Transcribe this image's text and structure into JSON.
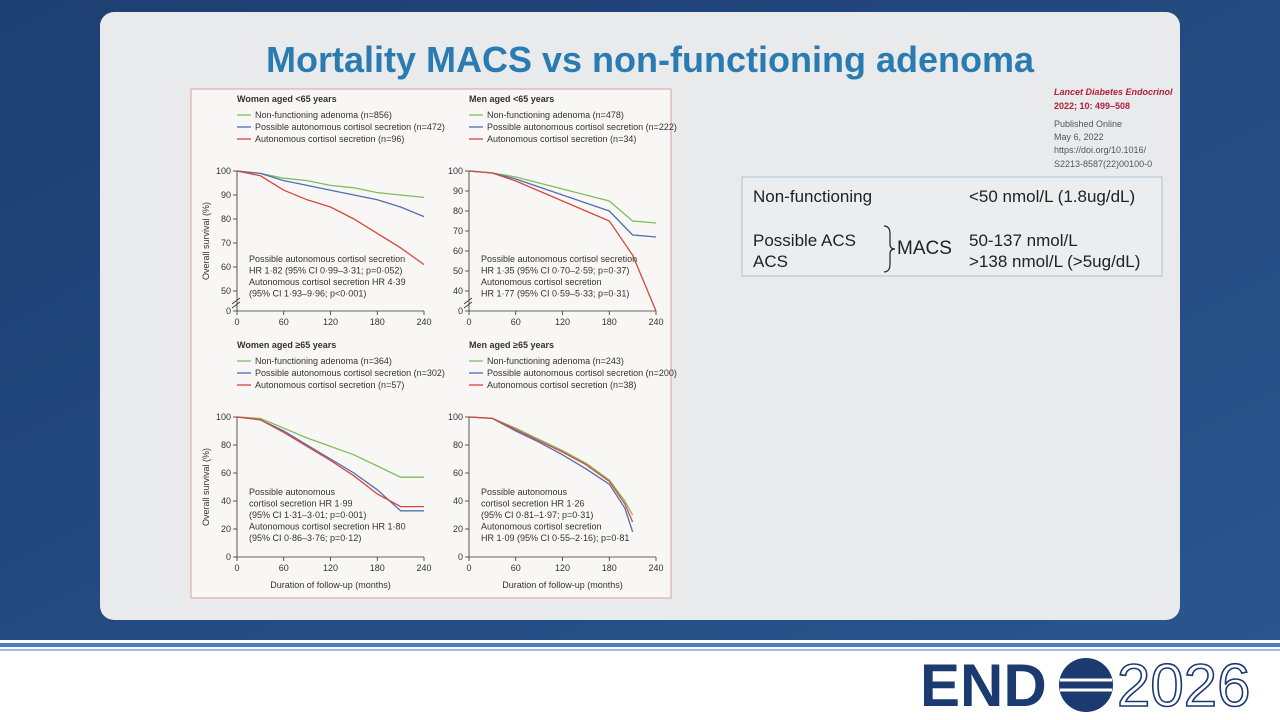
{
  "slide": {
    "title": "Mortality MACS vs non-functioning adenoma",
    "citation": {
      "journal": "Lancet Diabetes Endocrinol",
      "volume": "2022; 10: 499–508",
      "published": "Published Online",
      "date": "May 6, 2022",
      "doi1": "https://doi.org/10.1016/",
      "doi2": "S2213-8587(22)00100-0"
    },
    "table": {
      "row1": [
        "Non-functioning",
        "<50 nmol/L (1.8ug/dL)"
      ],
      "row2_left": [
        "Possible ACS",
        "ACS"
      ],
      "group": "MACS",
      "row2_right": [
        "50-137 nmol/L",
        ">138 nmol/L (>5ug/dL)"
      ]
    },
    "logo": {
      "left": "END",
      "right": "2026"
    }
  },
  "chart_data": [
    {
      "type": "line",
      "title": "Women aged <65 years",
      "ylabel": "Overall survival (%)",
      "x": [
        0,
        30,
        60,
        90,
        120,
        150,
        180,
        210,
        240
      ],
      "xlim": [
        0,
        240
      ],
      "xticks": [
        0,
        60,
        120,
        180,
        240
      ],
      "ylim": [
        50,
        100
      ],
      "yticks": [
        0,
        50,
        60,
        70,
        80,
        90,
        100
      ],
      "axis_break": true,
      "series": [
        {
          "name": "Non-functioning adenoma (n=856)",
          "color": "#7cbf5c",
          "values": [
            100,
            99,
            97,
            96,
            94,
            93,
            91,
            90,
            89
          ]
        },
        {
          "name": "Possible autonomous cortisol secretion (n=472)",
          "color": "#4d6fb3",
          "values": [
            100,
            99,
            96,
            94,
            92,
            90,
            88,
            85,
            81
          ]
        },
        {
          "name": "Autonomous cortisol secretion (n=96)",
          "color": "#d8473b",
          "values": [
            100,
            98,
            92,
            88,
            85,
            80,
            74,
            68,
            61
          ]
        }
      ],
      "annotation": [
        "Possible autonomous cortisol secretion",
        "HR 1·82 (95% CI 0·99–3·31; p=0·052)",
        "Autonomous cortisol secretion HR 4·39",
        "(95% CI 1·93–9·96; p<0·001)"
      ]
    },
    {
      "type": "line",
      "title": "Men aged <65 years",
      "x": [
        0,
        30,
        60,
        90,
        120,
        150,
        180,
        210,
        240
      ],
      "xlim": [
        0,
        240
      ],
      "xticks": [
        0,
        60,
        120,
        180,
        240
      ],
      "ylim": [
        40,
        100
      ],
      "yticks": [
        0,
        40,
        50,
        60,
        70,
        80,
        90,
        100
      ],
      "axis_break": true,
      "series": [
        {
          "name": "Non-functioning adenoma (n=478)",
          "color": "#7cbf5c",
          "values": [
            100,
            99,
            97,
            94,
            91,
            88,
            85,
            75,
            74
          ]
        },
        {
          "name": "Possible autonomous cortisol secretion (n=222)",
          "color": "#4d6fb3",
          "values": [
            100,
            99,
            96,
            92,
            88,
            84,
            80,
            68,
            67
          ]
        },
        {
          "name": "Autonomous cortisol secretion (n=34)",
          "color": "#d8473b",
          "values": [
            100,
            99,
            95,
            90,
            85,
            80,
            75,
            58,
            38
          ]
        }
      ],
      "annotation": [
        "Possible autonomous cortisol secretion",
        "HR 1·35 (95% CI 0·70–2·59; p=0·37)",
        "Autonomous cortisol secretion",
        "HR 1·77 (95% CI 0·59–5·33; p=0·31)"
      ]
    },
    {
      "type": "line",
      "title": "Women aged ≥65 years",
      "ylabel": "Overall survival (%)",
      "xlabel": "Duration of follow-up (months)",
      "x": [
        0,
        30,
        60,
        90,
        120,
        150,
        180,
        210,
        240
      ],
      "xlim": [
        0,
        240
      ],
      "xticks": [
        0,
        60,
        120,
        180,
        240
      ],
      "ylim": [
        0,
        100
      ],
      "yticks": [
        0,
        20,
        40,
        60,
        80,
        100
      ],
      "axis_break": false,
      "series": [
        {
          "name": "Non-functioning adenoma (n=364)",
          "color": "#7cbf5c",
          "values": [
            100,
            99,
            92,
            85,
            79,
            73,
            65,
            57,
            57
          ]
        },
        {
          "name": "Possible autonomous cortisol secretion (n=302)",
          "color": "#4d6fb3",
          "values": [
            100,
            98,
            90,
            80,
            70,
            60,
            48,
            33,
            33
          ]
        },
        {
          "name": "Autonomous cortisol secretion (n=57)",
          "color": "#d8473b",
          "values": [
            100,
            98,
            89,
            79,
            69,
            58,
            45,
            36,
            36
          ]
        }
      ],
      "annotation": [
        "Possible autonomous",
        "cortisol secretion HR 1·99",
        "(95% CI 1·31–3·01; p=0·001)",
        "Autonomous cortisol secretion HR 1·80",
        "(95% CI 0·86–3·76; p=0·12)"
      ]
    },
    {
      "type": "line",
      "title": "Men aged ≥65 years",
      "xlabel": "Duration of follow-up (months)",
      "x": [
        0,
        30,
        60,
        90,
        120,
        150,
        180,
        200,
        210
      ],
      "xlim": [
        0,
        240
      ],
      "xticks": [
        0,
        60,
        120,
        180,
        240
      ],
      "ylim": [
        0,
        100
      ],
      "yticks": [
        0,
        20,
        40,
        60,
        80,
        100
      ],
      "axis_break": false,
      "series": [
        {
          "name": "Non-functioning adenoma (n=243)",
          "color": "#7cbf5c",
          "values": [
            100,
            99,
            92,
            84,
            76,
            67,
            55,
            40,
            30
          ]
        },
        {
          "name": "Possible autonomous cortisol secretion (n=200)",
          "color": "#4d6fb3",
          "values": [
            100,
            99,
            90,
            82,
            73,
            63,
            52,
            35,
            18
          ]
        },
        {
          "name": "Autonomous cortisol secretion (n=38)",
          "color": "#d8473b",
          "values": [
            100,
            99,
            91,
            83,
            75,
            66,
            54,
            38,
            25
          ]
        }
      ],
      "annotation": [
        "Possible autonomous",
        "cortisol secretion HR 1·26",
        "(95% CI 0·81–1·97; p=0·31)",
        "Autonomous cortisol secretion",
        "HR 1·09 (95% CI 0·55–2·16); p=0·81"
      ]
    }
  ]
}
